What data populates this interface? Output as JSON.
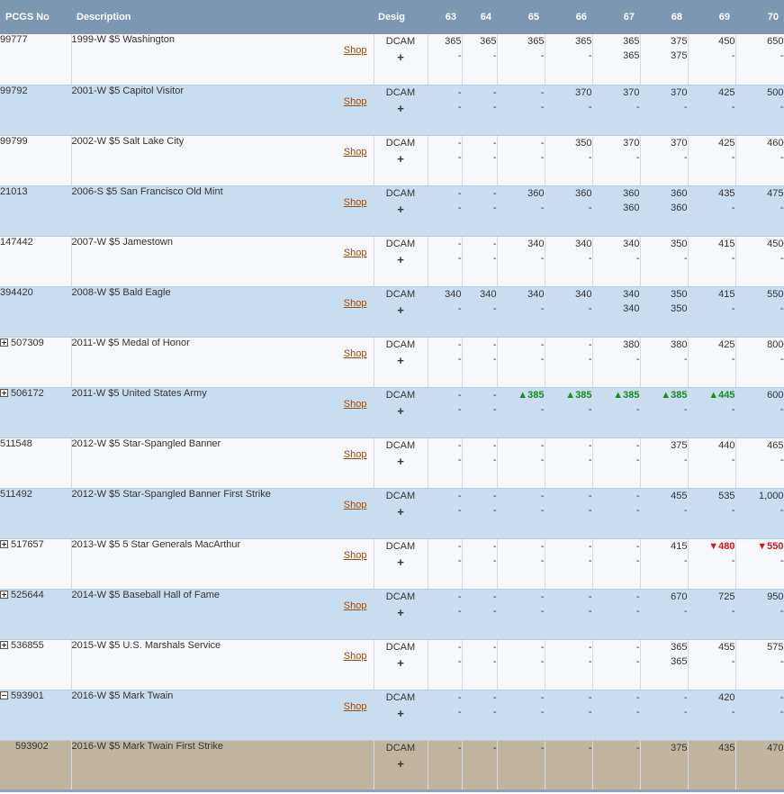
{
  "headers": {
    "pcgs": "PCGS No",
    "description": "Description",
    "desig": "Desig",
    "grades": [
      "63",
      "64",
      "65",
      "66",
      "67",
      "68",
      "69",
      "70"
    ]
  },
  "rows": [
    {
      "pcgs": "99777",
      "expander": "none",
      "description": "1999-W $5 Washington",
      "shop": "Shop",
      "desig": "DCAM",
      "plus": "+",
      "stripe": "white",
      "grades": [
        [
          "365",
          "-"
        ],
        [
          "365",
          "-"
        ],
        [
          "365",
          "-"
        ],
        [
          "365",
          "-"
        ],
        [
          "365",
          "365"
        ],
        [
          "375",
          "375"
        ],
        [
          "450",
          "-"
        ],
        [
          "650",
          "-"
        ]
      ]
    },
    {
      "pcgs": "99792",
      "expander": "none",
      "description": "2001-W $5 Capitol Visitor",
      "shop": "Shop",
      "desig": "DCAM",
      "plus": "+",
      "stripe": "blue",
      "grades": [
        [
          "-",
          "-"
        ],
        [
          "-",
          "-"
        ],
        [
          "-",
          "-"
        ],
        [
          "370",
          "-"
        ],
        [
          "370",
          "-"
        ],
        [
          "370",
          "-"
        ],
        [
          "425",
          "-"
        ],
        [
          "500",
          "-"
        ]
      ]
    },
    {
      "pcgs": "99799",
      "expander": "none",
      "description": "2002-W $5 Salt Lake City",
      "shop": "Shop",
      "desig": "DCAM",
      "plus": "+",
      "stripe": "white",
      "grades": [
        [
          "-",
          "-"
        ],
        [
          "-",
          "-"
        ],
        [
          "-",
          "-"
        ],
        [
          "350",
          "-"
        ],
        [
          "370",
          "-"
        ],
        [
          "370",
          "-"
        ],
        [
          "425",
          "-"
        ],
        [
          "460",
          "-"
        ]
      ]
    },
    {
      "pcgs": "21013",
      "expander": "none",
      "description": "2006-S $5 San Francisco Old Mint",
      "shop": "Shop",
      "desig": "DCAM",
      "plus": "+",
      "stripe": "blue",
      "grades": [
        [
          "-",
          "-"
        ],
        [
          "-",
          "-"
        ],
        [
          "360",
          "-"
        ],
        [
          "360",
          "-"
        ],
        [
          "360",
          "360"
        ],
        [
          "360",
          "360"
        ],
        [
          "435",
          "-"
        ],
        [
          "475",
          "-"
        ]
      ]
    },
    {
      "pcgs": "147442",
      "expander": "none",
      "description": "2007-W $5 Jamestown",
      "shop": "Shop",
      "desig": "DCAM",
      "plus": "+",
      "stripe": "white",
      "grades": [
        [
          "-",
          "-"
        ],
        [
          "-",
          "-"
        ],
        [
          "340",
          "-"
        ],
        [
          "340",
          "-"
        ],
        [
          "340",
          "-"
        ],
        [
          "350",
          "-"
        ],
        [
          "415",
          "-"
        ],
        [
          "450",
          "-"
        ]
      ]
    },
    {
      "pcgs": "394420",
      "expander": "none",
      "description": "2008-W $5 Bald Eagle",
      "shop": "Shop",
      "desig": "DCAM",
      "plus": "+",
      "stripe": "blue",
      "grades": [
        [
          "340",
          "-"
        ],
        [
          "340",
          "-"
        ],
        [
          "340",
          "-"
        ],
        [
          "340",
          "-"
        ],
        [
          "340",
          "340"
        ],
        [
          "350",
          "350"
        ],
        [
          "415",
          "-"
        ],
        [
          "550",
          "-"
        ]
      ]
    },
    {
      "pcgs": "507309",
      "expander": "plus",
      "description": "2011-W $5 Medal of Honor",
      "shop": "Shop",
      "desig": "DCAM",
      "plus": "+",
      "stripe": "white",
      "grades": [
        [
          "-",
          "-"
        ],
        [
          "-",
          "-"
        ],
        [
          "-",
          "-"
        ],
        [
          "-",
          "-"
        ],
        [
          "380",
          "-"
        ],
        [
          "380",
          "-"
        ],
        [
          "425",
          "-"
        ],
        [
          "800",
          "-"
        ]
      ]
    },
    {
      "pcgs": "506172",
      "expander": "plus",
      "description": "2011-W $5 United States Army",
      "shop": "Shop",
      "desig": "DCAM",
      "plus": "+",
      "stripe": "blue",
      "grades": [
        [
          "-",
          "-"
        ],
        [
          "-",
          "-"
        ],
        [
          "▲385",
          "-"
        ],
        [
          "▲385",
          "-"
        ],
        [
          "▲385",
          "-"
        ],
        [
          "▲385",
          "-"
        ],
        [
          "▲445",
          "-"
        ],
        [
          "600",
          "-"
        ]
      ],
      "trend": [
        "",
        "",
        "up",
        "up",
        "up",
        "up",
        "up",
        ""
      ]
    },
    {
      "pcgs": "511548",
      "expander": "none",
      "description": "2012-W $5 Star-Spangled Banner",
      "shop": "Shop",
      "desig": "DCAM",
      "plus": "+",
      "stripe": "white",
      "grades": [
        [
          "-",
          "-"
        ],
        [
          "-",
          "-"
        ],
        [
          "-",
          "-"
        ],
        [
          "-",
          "-"
        ],
        [
          "-",
          "-"
        ],
        [
          "375",
          "-"
        ],
        [
          "440",
          "-"
        ],
        [
          "465",
          "-"
        ]
      ]
    },
    {
      "pcgs": "511492",
      "expander": "none",
      "description": "2012-W $5 Star-Spangled Banner First Strike",
      "shop": "Shop",
      "desig": "DCAM",
      "plus": "+",
      "stripe": "blue",
      "grades": [
        [
          "-",
          "-"
        ],
        [
          "-",
          "-"
        ],
        [
          "-",
          "-"
        ],
        [
          "-",
          "-"
        ],
        [
          "-",
          "-"
        ],
        [
          "455",
          "-"
        ],
        [
          "535",
          "-"
        ],
        [
          "1,000",
          "-"
        ]
      ]
    },
    {
      "pcgs": "517657",
      "expander": "plus",
      "description": "2013-W $5 5 Star Generals MacArthur",
      "shop": "Shop",
      "desig": "DCAM",
      "plus": "+",
      "stripe": "white",
      "grades": [
        [
          "-",
          "-"
        ],
        [
          "-",
          "-"
        ],
        [
          "-",
          "-"
        ],
        [
          "-",
          "-"
        ],
        [
          "-",
          "-"
        ],
        [
          "415",
          "-"
        ],
        [
          "▼480",
          "-"
        ],
        [
          "▼550",
          "-"
        ]
      ],
      "trend": [
        "",
        "",
        "",
        "",
        "",
        "",
        "down",
        "down"
      ]
    },
    {
      "pcgs": "525644",
      "expander": "plus",
      "description": "2014-W $5 Baseball Hall of Fame",
      "shop": "Shop",
      "desig": "DCAM",
      "plus": "+",
      "stripe": "blue",
      "grades": [
        [
          "-",
          "-"
        ],
        [
          "-",
          "-"
        ],
        [
          "-",
          "-"
        ],
        [
          "-",
          "-"
        ],
        [
          "-",
          "-"
        ],
        [
          "670",
          "-"
        ],
        [
          "725",
          "-"
        ],
        [
          "950",
          "-"
        ]
      ]
    },
    {
      "pcgs": "536855",
      "expander": "plus",
      "description": "2015-W $5 U.S. Marshals Service",
      "shop": "Shop",
      "desig": "DCAM",
      "plus": "+",
      "stripe": "white",
      "grades": [
        [
          "-",
          "-"
        ],
        [
          "-",
          "-"
        ],
        [
          "-",
          "-"
        ],
        [
          "-",
          "-"
        ],
        [
          "-",
          "-"
        ],
        [
          "365",
          "365"
        ],
        [
          "455",
          "-"
        ],
        [
          "575",
          "-"
        ]
      ]
    },
    {
      "pcgs": "593901",
      "expander": "minus",
      "description": "2016-W $5 Mark Twain",
      "shop": "Shop",
      "desig": "DCAM",
      "plus": "+",
      "stripe": "blue",
      "grades": [
        [
          "-",
          "-"
        ],
        [
          "-",
          "-"
        ],
        [
          "-",
          "-"
        ],
        [
          "-",
          "-"
        ],
        [
          "-",
          "-"
        ],
        [
          "-",
          "-"
        ],
        [
          "420",
          "-"
        ],
        [
          "-",
          "-"
        ]
      ]
    },
    {
      "pcgs": "593902",
      "expander": "none",
      "indent": true,
      "description": "2016-W $5 Mark Twain First Strike",
      "shop": "",
      "desig": "DCAM",
      "plus": "+",
      "stripe": "tan",
      "grades": [
        [
          "-",
          ""
        ],
        [
          "-",
          ""
        ],
        [
          "-",
          ""
        ],
        [
          "-",
          ""
        ],
        [
          "-",
          ""
        ],
        [
          "375",
          ""
        ],
        [
          "435",
          ""
        ],
        [
          "470",
          ""
        ]
      ]
    }
  ]
}
